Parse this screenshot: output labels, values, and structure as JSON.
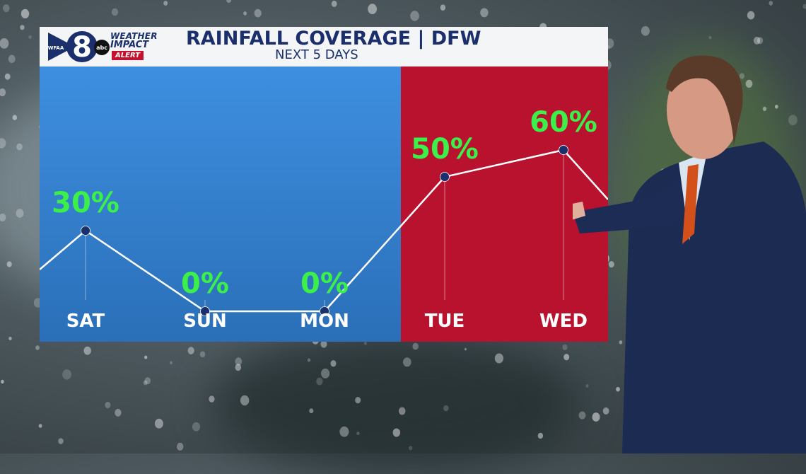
{
  "header": {
    "station_number": "8",
    "station_call": "WFAA",
    "network": "abc",
    "brand_line1": "WEATHER",
    "brand_line2": "IMPACT",
    "brand_alert": "ALERT",
    "title": "RAINFALL COVERAGE | DFW",
    "subtitle": "NEXT 5 DAYS"
  },
  "colors": {
    "value_label": "#3cf04a",
    "normal_zone": "#2a6fb8",
    "alert_zone": "#b8122f",
    "title": "#1a2f6b"
  },
  "chart_data": {
    "type": "line",
    "categories": [
      "SAT",
      "SUN",
      "MON",
      "TUE",
      "WED"
    ],
    "values": [
      30,
      0,
      0,
      50,
      60
    ],
    "value_labels": [
      "30%",
      "0%",
      "0%",
      "50%",
      "60%"
    ],
    "highlighted_categories": [
      "TUE",
      "WED"
    ],
    "ylim": [
      0,
      100
    ],
    "grid": false,
    "legend": "none"
  }
}
